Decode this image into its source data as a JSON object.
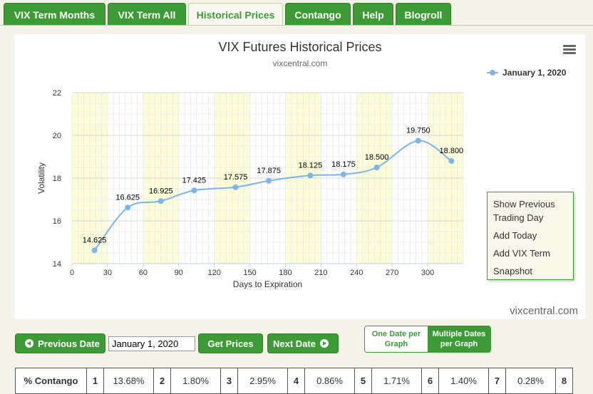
{
  "tabs": [
    {
      "label": "VIX Term Months",
      "active": false
    },
    {
      "label": "VIX Term All",
      "active": false
    },
    {
      "label": "Historical Prices",
      "active": true
    },
    {
      "label": "Contango",
      "active": false
    },
    {
      "label": "Help",
      "active": false
    },
    {
      "label": "Blogroll",
      "active": false
    }
  ],
  "chart": {
    "menu_icon": "hamburger-menu-icon",
    "watermark": "vixcentral.com"
  },
  "chart_data": {
    "type": "line",
    "title": "VIX Futures Historical Prices",
    "subtitle": "vixcentral.com",
    "xlabel": "Days to Expiration",
    "ylabel": "Volatility",
    "xlim": [
      0,
      330
    ],
    "ylim": [
      14,
      22
    ],
    "xticks": [
      0,
      30,
      60,
      90,
      120,
      150,
      180,
      210,
      240,
      270,
      300
    ],
    "yticks": [
      14,
      16,
      18,
      20,
      22
    ],
    "grid": true,
    "legend_position": "top-right",
    "shaded_bands": [
      [
        0,
        30
      ],
      [
        60,
        90
      ],
      [
        120,
        150
      ],
      [
        180,
        210
      ],
      [
        240,
        270
      ],
      [
        300,
        330
      ]
    ],
    "series": [
      {
        "name": "January 1, 2020",
        "color": "#7cb5ec",
        "x": [
          19,
          47,
          75,
          103,
          138,
          166,
          201,
          229,
          257,
          292,
          320
        ],
        "y": [
          14.625,
          16.625,
          16.925,
          17.425,
          17.575,
          17.875,
          18.125,
          18.175,
          18.5,
          19.75,
          18.8
        ],
        "labels": [
          "14.625",
          "16.625",
          "16.925",
          "17.425",
          "17.575",
          "17.875",
          "18.125",
          "18.175",
          "18.500",
          "19.750",
          "18.800"
        ]
      }
    ]
  },
  "context_menu": {
    "items": [
      "Show Previous Trading Day",
      "Add Today",
      "Add VIX Term",
      "Snapshot"
    ]
  },
  "controls": {
    "previous_label": "Previous Date",
    "date_value": "January 1, 2020",
    "get_prices_label": "Get Prices",
    "next_label": "Next Date",
    "toggle_one": "One Date per Graph",
    "toggle_multi": "Multiple Dates per Graph"
  },
  "contango_table": {
    "header": "% Contango",
    "cells": [
      {
        "month": "1",
        "value": "13.68%"
      },
      {
        "month": "2",
        "value": "1.80%"
      },
      {
        "month": "3",
        "value": "2.95%"
      },
      {
        "month": "4",
        "value": "0.86%"
      },
      {
        "month": "5",
        "value": "1.71%"
      },
      {
        "month": "6",
        "value": "1.40%"
      },
      {
        "month": "7",
        "value": "0.28%"
      },
      {
        "month": "8",
        "value": ""
      }
    ]
  }
}
